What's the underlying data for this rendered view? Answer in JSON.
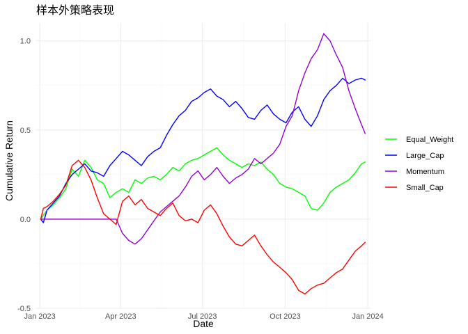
{
  "chart_data": {
    "type": "line",
    "title": "样本外策略表现",
    "xlabel": "Date",
    "ylabel": "Cumulative Return",
    "x_range": [
      "2022-12-28",
      "2024-01-04"
    ],
    "ylim": [
      -0.5,
      1.1
    ],
    "x_ticks": [
      {
        "date": "2023-01-01",
        "label": "Jan 2023"
      },
      {
        "date": "2023-04-01",
        "label": "Apr 2023"
      },
      {
        "date": "2023-07-01",
        "label": "Jul 2023"
      },
      {
        "date": "2023-10-01",
        "label": "Oct 2023"
      },
      {
        "date": "2024-01-01",
        "label": "Jan 2024"
      }
    ],
    "y_ticks": [
      {
        "value": -0.5,
        "label": "-0.5"
      },
      {
        "value": 0.0,
        "label": "0.0"
      },
      {
        "value": 0.5,
        "label": "0.5"
      },
      {
        "value": 1.0,
        "label": "1.0"
      }
    ],
    "grid": true,
    "legend_position": "right",
    "series": [
      {
        "name": "Equal_Weight",
        "color": "#00ff00",
        "points": [
          [
            "2023-01-02",
            0.0
          ],
          [
            "2023-01-09",
            0.05
          ],
          [
            "2023-01-16",
            0.08
          ],
          [
            "2023-01-23",
            0.12
          ],
          [
            "2023-01-30",
            0.17
          ],
          [
            "2023-02-06",
            0.28
          ],
          [
            "2023-02-13",
            0.24
          ],
          [
            "2023-02-20",
            0.33
          ],
          [
            "2023-02-27",
            0.29
          ],
          [
            "2023-03-06",
            0.22
          ],
          [
            "2023-03-13",
            0.2
          ],
          [
            "2023-03-20",
            0.12
          ],
          [
            "2023-03-27",
            0.15
          ],
          [
            "2023-04-03",
            0.17
          ],
          [
            "2023-04-10",
            0.15
          ],
          [
            "2023-04-17",
            0.22
          ],
          [
            "2023-04-24",
            0.2
          ],
          [
            "2023-05-01",
            0.23
          ],
          [
            "2023-05-08",
            0.24
          ],
          [
            "2023-05-15",
            0.22
          ],
          [
            "2023-05-22",
            0.25
          ],
          [
            "2023-05-29",
            0.29
          ],
          [
            "2023-06-05",
            0.27
          ],
          [
            "2023-06-12",
            0.31
          ],
          [
            "2023-06-19",
            0.33
          ],
          [
            "2023-06-26",
            0.34
          ],
          [
            "2023-07-03",
            0.36
          ],
          [
            "2023-07-10",
            0.38
          ],
          [
            "2023-07-17",
            0.4
          ],
          [
            "2023-07-24",
            0.36
          ],
          [
            "2023-07-31",
            0.33
          ],
          [
            "2023-08-07",
            0.31
          ],
          [
            "2023-08-14",
            0.29
          ],
          [
            "2023-08-21",
            0.31
          ],
          [
            "2023-08-28",
            0.3
          ],
          [
            "2023-09-04",
            0.32
          ],
          [
            "2023-09-11",
            0.28
          ],
          [
            "2023-09-18",
            0.25
          ],
          [
            "2023-09-25",
            0.2
          ],
          [
            "2023-10-02",
            0.18
          ],
          [
            "2023-10-09",
            0.17
          ],
          [
            "2023-10-16",
            0.15
          ],
          [
            "2023-10-23",
            0.13
          ],
          [
            "2023-10-30",
            0.06
          ],
          [
            "2023-11-06",
            0.05
          ],
          [
            "2023-11-13",
            0.09
          ],
          [
            "2023-11-20",
            0.15
          ],
          [
            "2023-11-27",
            0.18
          ],
          [
            "2023-12-04",
            0.2
          ],
          [
            "2023-12-11",
            0.22
          ],
          [
            "2023-12-18",
            0.26
          ],
          [
            "2023-12-25",
            0.31
          ],
          [
            "2023-12-29",
            0.32
          ]
        ]
      },
      {
        "name": "Large_Cap",
        "color": "#0000ff",
        "points": [
          [
            "2023-01-02",
            0.0
          ],
          [
            "2023-01-05",
            -0.02
          ],
          [
            "2023-01-09",
            0.05
          ],
          [
            "2023-01-16",
            0.09
          ],
          [
            "2023-01-23",
            0.13
          ],
          [
            "2023-01-30",
            0.2
          ],
          [
            "2023-02-06",
            0.25
          ],
          [
            "2023-02-13",
            0.28
          ],
          [
            "2023-02-20",
            0.31
          ],
          [
            "2023-02-27",
            0.27
          ],
          [
            "2023-03-06",
            0.26
          ],
          [
            "2023-03-13",
            0.24
          ],
          [
            "2023-03-20",
            0.3
          ],
          [
            "2023-03-27",
            0.34
          ],
          [
            "2023-04-03",
            0.38
          ],
          [
            "2023-04-10",
            0.36
          ],
          [
            "2023-04-17",
            0.33
          ],
          [
            "2023-04-24",
            0.3
          ],
          [
            "2023-05-01",
            0.35
          ],
          [
            "2023-05-08",
            0.38
          ],
          [
            "2023-05-15",
            0.4
          ],
          [
            "2023-05-22",
            0.47
          ],
          [
            "2023-05-29",
            0.53
          ],
          [
            "2023-06-05",
            0.58
          ],
          [
            "2023-06-12",
            0.61
          ],
          [
            "2023-06-19",
            0.66
          ],
          [
            "2023-06-26",
            0.68
          ],
          [
            "2023-07-03",
            0.71
          ],
          [
            "2023-07-10",
            0.73
          ],
          [
            "2023-07-17",
            0.69
          ],
          [
            "2023-07-24",
            0.67
          ],
          [
            "2023-07-31",
            0.63
          ],
          [
            "2023-08-07",
            0.66
          ],
          [
            "2023-08-14",
            0.62
          ],
          [
            "2023-08-21",
            0.57
          ],
          [
            "2023-08-28",
            0.56
          ],
          [
            "2023-09-04",
            0.61
          ],
          [
            "2023-09-11",
            0.64
          ],
          [
            "2023-09-18",
            0.59
          ],
          [
            "2023-09-25",
            0.56
          ],
          [
            "2023-10-02",
            0.54
          ],
          [
            "2023-10-09",
            0.6
          ],
          [
            "2023-10-16",
            0.63
          ],
          [
            "2023-10-23",
            0.56
          ],
          [
            "2023-10-30",
            0.52
          ],
          [
            "2023-11-06",
            0.58
          ],
          [
            "2023-11-13",
            0.67
          ],
          [
            "2023-11-20",
            0.72
          ],
          [
            "2023-11-27",
            0.75
          ],
          [
            "2023-12-04",
            0.79
          ],
          [
            "2023-12-11",
            0.76
          ],
          [
            "2023-12-18",
            0.78
          ],
          [
            "2023-12-25",
            0.79
          ],
          [
            "2023-12-29",
            0.78
          ]
        ]
      },
      {
        "name": "Momentum",
        "color": "#9400d3",
        "points": [
          [
            "2023-01-02",
            0.0
          ],
          [
            "2023-01-30",
            0.0
          ],
          [
            "2023-02-27",
            0.0
          ],
          [
            "2023-03-20",
            0.0
          ],
          [
            "2023-03-27",
            0.0
          ],
          [
            "2023-04-03",
            -0.08
          ],
          [
            "2023-04-10",
            -0.12
          ],
          [
            "2023-04-17",
            -0.14
          ],
          [
            "2023-04-24",
            -0.11
          ],
          [
            "2023-05-01",
            -0.06
          ],
          [
            "2023-05-08",
            -0.01
          ],
          [
            "2023-05-15",
            0.04
          ],
          [
            "2023-05-22",
            0.07
          ],
          [
            "2023-05-29",
            0.1
          ],
          [
            "2023-06-05",
            0.13
          ],
          [
            "2023-06-12",
            0.18
          ],
          [
            "2023-06-19",
            0.24
          ],
          [
            "2023-06-26",
            0.27
          ],
          [
            "2023-07-03",
            0.22
          ],
          [
            "2023-07-10",
            0.25
          ],
          [
            "2023-07-17",
            0.29
          ],
          [
            "2023-07-24",
            0.24
          ],
          [
            "2023-07-31",
            0.2
          ],
          [
            "2023-08-07",
            0.23
          ],
          [
            "2023-08-14",
            0.25
          ],
          [
            "2023-08-21",
            0.28
          ],
          [
            "2023-08-28",
            0.34
          ],
          [
            "2023-09-04",
            0.31
          ],
          [
            "2023-09-11",
            0.34
          ],
          [
            "2023-09-18",
            0.37
          ],
          [
            "2023-09-25",
            0.42
          ],
          [
            "2023-10-02",
            0.52
          ],
          [
            "2023-10-09",
            0.58
          ],
          [
            "2023-10-16",
            0.72
          ],
          [
            "2023-10-23",
            0.82
          ],
          [
            "2023-10-30",
            0.9
          ],
          [
            "2023-11-06",
            0.95
          ],
          [
            "2023-11-13",
            1.04
          ],
          [
            "2023-11-20",
            1.0
          ],
          [
            "2023-11-27",
            0.92
          ],
          [
            "2023-12-04",
            0.85
          ],
          [
            "2023-12-11",
            0.72
          ],
          [
            "2023-12-18",
            0.62
          ],
          [
            "2023-12-25",
            0.53
          ],
          [
            "2023-12-29",
            0.48
          ]
        ]
      },
      {
        "name": "Small_Cap",
        "color": "#ff0000",
        "points": [
          [
            "2023-01-02",
            0.0
          ],
          [
            "2023-01-05",
            0.06
          ],
          [
            "2023-01-09",
            0.07
          ],
          [
            "2023-01-16",
            0.1
          ],
          [
            "2023-01-23",
            0.14
          ],
          [
            "2023-01-30",
            0.19
          ],
          [
            "2023-02-06",
            0.3
          ],
          [
            "2023-02-13",
            0.33
          ],
          [
            "2023-02-20",
            0.29
          ],
          [
            "2023-02-27",
            0.22
          ],
          [
            "2023-03-06",
            0.12
          ],
          [
            "2023-03-13",
            0.03
          ],
          [
            "2023-03-20",
            0.0
          ],
          [
            "2023-03-27",
            -0.03
          ],
          [
            "2023-04-03",
            0.1
          ],
          [
            "2023-04-10",
            0.13
          ],
          [
            "2023-04-17",
            0.08
          ],
          [
            "2023-04-24",
            0.11
          ],
          [
            "2023-05-01",
            0.06
          ],
          [
            "2023-05-08",
            0.04
          ],
          [
            "2023-05-15",
            0.02
          ],
          [
            "2023-05-22",
            0.06
          ],
          [
            "2023-05-29",
            0.09
          ],
          [
            "2023-06-05",
            0.02
          ],
          [
            "2023-06-12",
            -0.01
          ],
          [
            "2023-06-19",
            0.0
          ],
          [
            "2023-06-26",
            -0.02
          ],
          [
            "2023-07-03",
            0.05
          ],
          [
            "2023-07-10",
            0.08
          ],
          [
            "2023-07-17",
            0.03
          ],
          [
            "2023-07-24",
            -0.04
          ],
          [
            "2023-07-31",
            -0.1
          ],
          [
            "2023-08-07",
            -0.14
          ],
          [
            "2023-08-14",
            -0.15
          ],
          [
            "2023-08-21",
            -0.12
          ],
          [
            "2023-08-28",
            -0.09
          ],
          [
            "2023-09-04",
            -0.15
          ],
          [
            "2023-09-11",
            -0.2
          ],
          [
            "2023-09-18",
            -0.24
          ],
          [
            "2023-09-25",
            -0.27
          ],
          [
            "2023-10-02",
            -0.3
          ],
          [
            "2023-10-09",
            -0.34
          ],
          [
            "2023-10-16",
            -0.4
          ],
          [
            "2023-10-23",
            -0.42
          ],
          [
            "2023-10-30",
            -0.39
          ],
          [
            "2023-11-06",
            -0.37
          ],
          [
            "2023-11-13",
            -0.36
          ],
          [
            "2023-11-20",
            -0.33
          ],
          [
            "2023-11-27",
            -0.3
          ],
          [
            "2023-12-04",
            -0.28
          ],
          [
            "2023-12-11",
            -0.23
          ],
          [
            "2023-12-18",
            -0.18
          ],
          [
            "2023-12-25",
            -0.15
          ],
          [
            "2023-12-29",
            -0.13
          ]
        ]
      }
    ]
  }
}
